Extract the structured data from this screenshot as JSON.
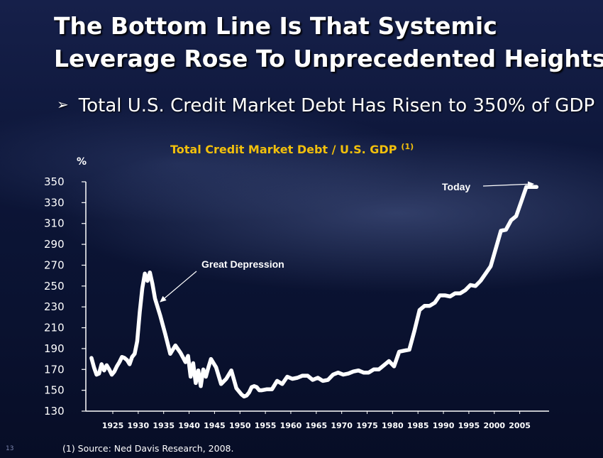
{
  "slide": {
    "title_line1": "The Bottom Line Is That Systemic",
    "title_line2": "Leverage Rose To Unprecedented Heights",
    "bullet": "Total U.S. Credit Market Debt Has Risen to 350% of GDP",
    "bullet_glyph": "➢",
    "source": "(1) Source: Ned Davis Research, 2008.",
    "page_number": "13"
  },
  "colors": {
    "title_text": "#ffffff",
    "chart_title": "#f2c00c",
    "line": "#ffffff",
    "background": "#0b1332"
  },
  "chart_data": {
    "type": "line",
    "title": "Total Credit Market Debt / U.S. GDP",
    "title_superscript": "(1)",
    "ylabel": "%",
    "xlabel": "",
    "ylim": [
      130,
      350
    ],
    "xlim": [
      1920,
      2010
    ],
    "yticks": [
      "350",
      "330",
      "310",
      "290",
      "270",
      "250",
      "230",
      "210",
      "190",
      "170",
      "150",
      "130"
    ],
    "xticks": [
      "1925",
      "1930",
      "1935",
      "1940",
      "1945",
      "1950",
      "1955",
      "1960",
      "1965",
      "1970",
      "1975",
      "1980",
      "1985",
      "1990",
      "1995",
      "2000",
      "2005"
    ],
    "grid": false,
    "series": [
      {
        "name": "Total Credit Market Debt / U.S. GDP",
        "x": [
          1920.8,
          1921.3,
          1921.8,
          1922.3,
          1922.8,
          1923.3,
          1923.8,
          1924.3,
          1924.8,
          1925.3,
          1925.8,
          1926.3,
          1926.8,
          1927.3,
          1927.8,
          1928.3,
          1928.8,
          1929.3,
          1929.8,
          1930.3,
          1930.8,
          1931.3,
          1931.8,
          1932.3,
          1932.8,
          1933.3,
          1934.3,
          1935.3,
          1936.3,
          1937.3,
          1938.3,
          1939.3,
          1939.8,
          1940.3,
          1940.8,
          1941.3,
          1941.8,
          1942.3,
          1942.8,
          1943.3,
          1943.8,
          1944.3,
          1945.3,
          1946.3,
          1947.3,
          1948.3,
          1949.3,
          1950.3,
          1950.8,
          1951.3,
          1951.8,
          1952.3,
          1952.8,
          1953.3,
          1953.8,
          1954.3,
          1955.3,
          1956.3,
          1957.3,
          1958.3,
          1959.3,
          1960.3,
          1961.3,
          1962.3,
          1963.3,
          1964.3,
          1965.3,
          1966.3,
          1967.3,
          1968.3,
          1969.3,
          1970.3,
          1971.3,
          1972.3,
          1973.3,
          1974.3,
          1975.3,
          1976.3,
          1977.3,
          1978.3,
          1979.3,
          1980.3,
          1981.3,
          1982.3,
          1983.3,
          1984.3,
          1985.3,
          1986.3,
          1987.3,
          1988.3,
          1989.3,
          1990.3,
          1991.3,
          1992.3,
          1993.3,
          1994.3,
          1995.3,
          1996.3,
          1997.3,
          1998.3,
          1999.3,
          2000.3,
          2001.3,
          2002.3,
          2003.3,
          2004.3,
          2005.3,
          2006.3,
          2007.3,
          2008.3
        ],
        "values": [
          181,
          172,
          165,
          166,
          175,
          169,
          174,
          170,
          165,
          168,
          173,
          177,
          182,
          181,
          179,
          175,
          182,
          185,
          197,
          225,
          248,
          262,
          255,
          263,
          252,
          238,
          222,
          204,
          185,
          193,
          186,
          177,
          183,
          163,
          176,
          157,
          169,
          154,
          170,
          163,
          172,
          180,
          172,
          156,
          161,
          169,
          152,
          146,
          144,
          145,
          148,
          153,
          154,
          153,
          150,
          150,
          151,
          151,
          159,
          156,
          163,
          161,
          162,
          164,
          164,
          160,
          162,
          159,
          160,
          165,
          167,
          165,
          166,
          168,
          169,
          167,
          167,
          170,
          170,
          174,
          178,
          173,
          187,
          188,
          189,
          207,
          227,
          231,
          231,
          234,
          241,
          241,
          240,
          243,
          243,
          246,
          251,
          250,
          255,
          262,
          269,
          286,
          303,
          304,
          313,
          317,
          331,
          345,
          345,
          345
        ]
      }
    ],
    "annotations": [
      {
        "text": "Great Depression",
        "x": 1932.3,
        "y": 240
      },
      {
        "text": "Today",
        "x": 2008.3,
        "y": 345
      }
    ]
  }
}
